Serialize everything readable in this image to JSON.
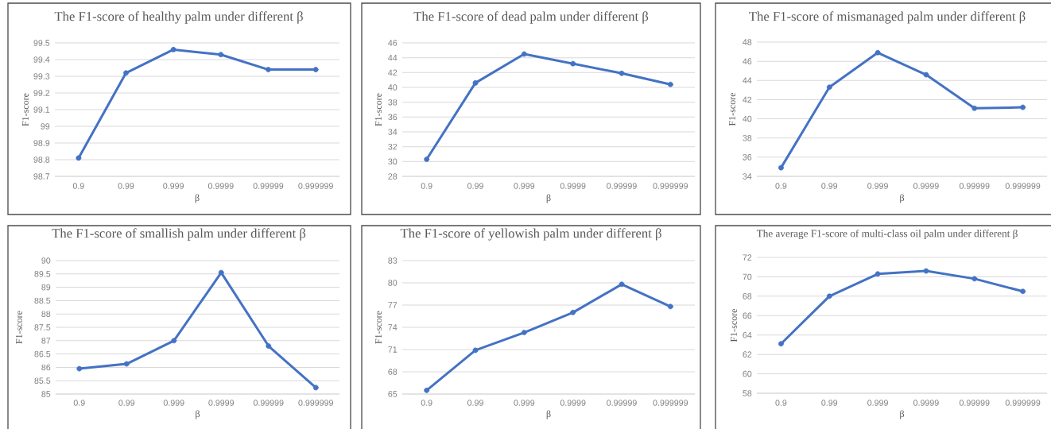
{
  "chart_data": [
    {
      "type": "line",
      "title": "The F1-score of healthy palm under different β",
      "xlabel": "β",
      "ylabel": "F1-score",
      "categories": [
        "0.9",
        "0.99",
        "0.999",
        "0.9999",
        "0.99999",
        "0.999999"
      ],
      "values": [
        98.81,
        99.32,
        99.46,
        99.43,
        99.34,
        99.34
      ],
      "color": "#4472c4",
      "ylim": [
        98.7,
        99.5
      ],
      "yticks": [
        98.7,
        98.8,
        98.9,
        99,
        99.1,
        99.2,
        99.3,
        99.4,
        99.5
      ],
      "grid": "y",
      "marker": "circle",
      "line_style": "solid"
    },
    {
      "type": "line",
      "title": "The F1-score of dead palm under different β",
      "xlabel": "β",
      "ylabel": "F1-score",
      "categories": [
        "0.9",
        "0.99",
        "0.999",
        "0.9999",
        "0.99999",
        "0.999999"
      ],
      "values": [
        30.3,
        40.6,
        44.5,
        43.2,
        41.9,
        40.4
      ],
      "color": "#4472c4",
      "ylim": [
        28,
        46
      ],
      "yticks": [
        28,
        30,
        32,
        34,
        36,
        38,
        40,
        42,
        44,
        46
      ],
      "grid": "y",
      "marker": "circle",
      "line_style": "solid"
    },
    {
      "type": "line",
      "title": "The F1-score of mismanaged palm under different β",
      "xlabel": "β",
      "ylabel": "F1-score",
      "categories": [
        "0.9",
        "0.99",
        "0.999",
        "0.9999",
        "0.99999",
        "0.999999"
      ],
      "values": [
        34.9,
        43.3,
        46.9,
        44.6,
        41.1,
        41.2
      ],
      "color": "#4472c4",
      "ylim": [
        34,
        48
      ],
      "yticks": [
        34,
        36,
        38,
        40,
        42,
        44,
        46,
        48
      ],
      "grid": "y",
      "marker": "circle",
      "line_style": "solid"
    },
    {
      "type": "line",
      "title": "The F1-score of smallish palm under different β",
      "xlabel": "β",
      "ylabel": "F1-score",
      "categories": [
        "0.9",
        "0.99",
        "0.999",
        "0.9999",
        "0.99999",
        "0.999999"
      ],
      "values": [
        85.95,
        86.13,
        87.0,
        89.55,
        86.8,
        85.24
      ],
      "color": "#4472c4",
      "ylim": [
        85,
        90
      ],
      "yticks": [
        85,
        85.5,
        86,
        86.5,
        87,
        87.5,
        88,
        88.5,
        89,
        89.5,
        90
      ],
      "grid": "y",
      "marker": "circle",
      "line_style": "solid"
    },
    {
      "type": "line",
      "title": "The F1-score of yellowish palm under different β",
      "xlabel": "β",
      "ylabel": "F1-score",
      "categories": [
        "0.9",
        "0.99",
        "0.999",
        "0.9999",
        "0.99999",
        "0.999999"
      ],
      "values": [
        65.5,
        70.9,
        73.3,
        76.0,
        79.8,
        76.8
      ],
      "color": "#4472c4",
      "ylim": [
        65,
        83
      ],
      "yticks": [
        65,
        68,
        71,
        74,
        77,
        80,
        83
      ],
      "grid": "y",
      "marker": "circle",
      "line_style": "solid"
    },
    {
      "type": "line",
      "title": "The average F1-score of multi-class oil palm under different β",
      "xlabel": "β",
      "ylabel": "F1-score",
      "categories": [
        "0.9",
        "0.99",
        "0.999",
        "0.9999",
        "0.99999",
        "0.999999"
      ],
      "values": [
        63.1,
        68.0,
        70.3,
        70.6,
        69.8,
        68.5
      ],
      "color": "#4472c4",
      "ylim": [
        58,
        72
      ],
      "yticks": [
        58,
        60,
        62,
        64,
        66,
        68,
        70,
        72
      ],
      "grid": "y",
      "marker": "circle",
      "line_style": "solid"
    }
  ]
}
